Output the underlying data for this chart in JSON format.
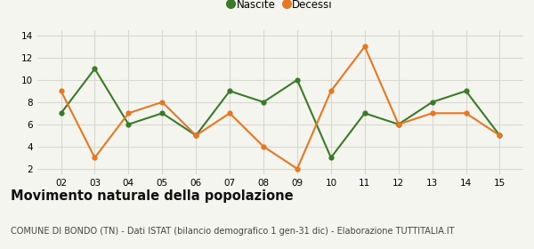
{
  "years": [
    2,
    3,
    4,
    5,
    6,
    7,
    8,
    9,
    10,
    11,
    12,
    13,
    14,
    15
  ],
  "nascite": [
    7,
    11,
    6,
    7,
    5,
    9,
    8,
    10,
    3,
    7,
    6,
    8,
    9,
    5
  ],
  "decessi": [
    9,
    3,
    7,
    8,
    5,
    7,
    4,
    2,
    9,
    13,
    6,
    7,
    7,
    5
  ],
  "nascite_color": "#3a7a28",
  "decessi_color": "#e87722",
  "title": "Movimento naturale della popolazione",
  "subtitle": "COMUNE DI BONDO (TN) - Dati ISTAT (bilancio demografico 1 gen-31 dic) - Elaborazione TUTTITALIA.IT",
  "legend_nascite": "Nascite",
  "legend_decessi": "Decessi",
  "ylim": [
    1.5,
    14.5
  ],
  "yticks": [
    2,
    4,
    6,
    8,
    10,
    12,
    14
  ],
  "xlabels": [
    "02",
    "03",
    "04",
    "05",
    "06",
    "07",
    "08",
    "09",
    "10",
    "11",
    "12",
    "13",
    "14",
    "15"
  ],
  "background_color": "#f5f5f0",
  "grid_color": "#d8d8d0",
  "title_fontsize": 10.5,
  "subtitle_fontsize": 7,
  "legend_fontsize": 8.5,
  "tick_fontsize": 7.5,
  "marker_size": 4.5,
  "line_width": 1.5
}
